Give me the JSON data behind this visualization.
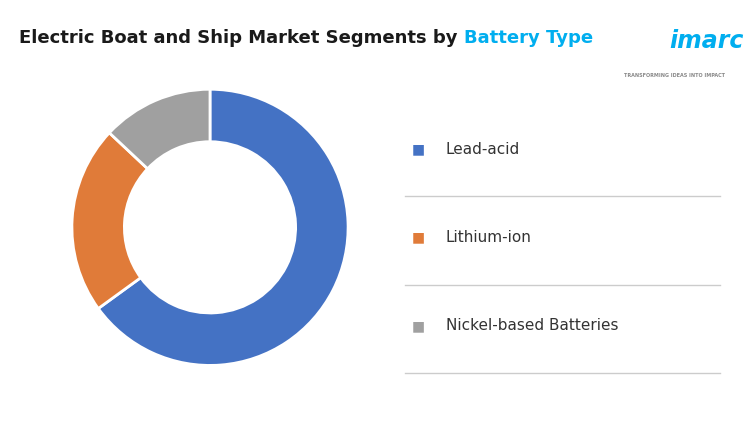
{
  "title_normal": "Electric Boat and Ship Market Segments by ",
  "title_colored": "Battery Type",
  "title_normal_color": "#1a1a1a",
  "title_colored_color": "#00aeef",
  "title_fontsize": 13,
  "slices": [
    {
      "label": "Lead-acid",
      "value": 65,
      "color": "#4472C4"
    },
    {
      "label": "Lithium-ion",
      "value": 22,
      "color": "#E07B39"
    },
    {
      "label": "Nickel-based Batteries",
      "value": 13,
      "color": "#A0A0A0"
    }
  ],
  "donut_width": 0.38,
  "start_angle": 90,
  "edge_color": "#ffffff",
  "edge_width": 2,
  "background_color": "#ffffff",
  "legend_marker": "■",
  "legend_fontsize": 11,
  "legend_text_color": "#333333",
  "legend_line_color": "#cccccc",
  "logo_text": "imarc",
  "logo_subtext": "TRANSFORMING IDEAS INTO IMPACT",
  "logo_color": "#00aeef",
  "logo_subtext_color": "#888888"
}
